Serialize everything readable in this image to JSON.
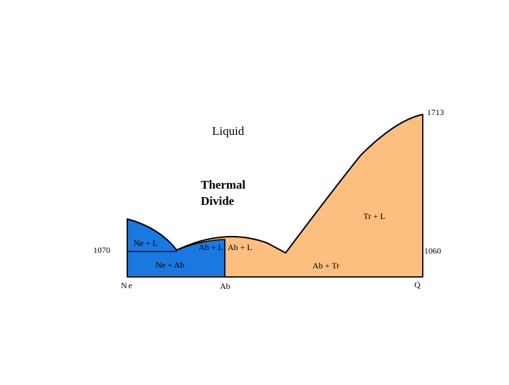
{
  "colors": {
    "blue_field": "#1a78e0",
    "orange_field": "#fcbf80",
    "outline": "#000000",
    "background": "#ffffff"
  },
  "labels": {
    "temp_max": "1713",
    "liquid": "Liquid",
    "thermal_line1": "Thermal",
    "thermal_line2": "Divide",
    "tr_l": "Tr + L",
    "ne_l": "Ne + L",
    "ab_l_left": "Ab + L",
    "ab_l_right": "Ab + L",
    "temp_left": "1070",
    "temp_right": "1060",
    "ne_ab": "Ne + Ab",
    "ab_tr": "Ab + Tr",
    "axis_ne": "Ne",
    "axis_ab": "Ab",
    "axis_q": "Q"
  }
}
